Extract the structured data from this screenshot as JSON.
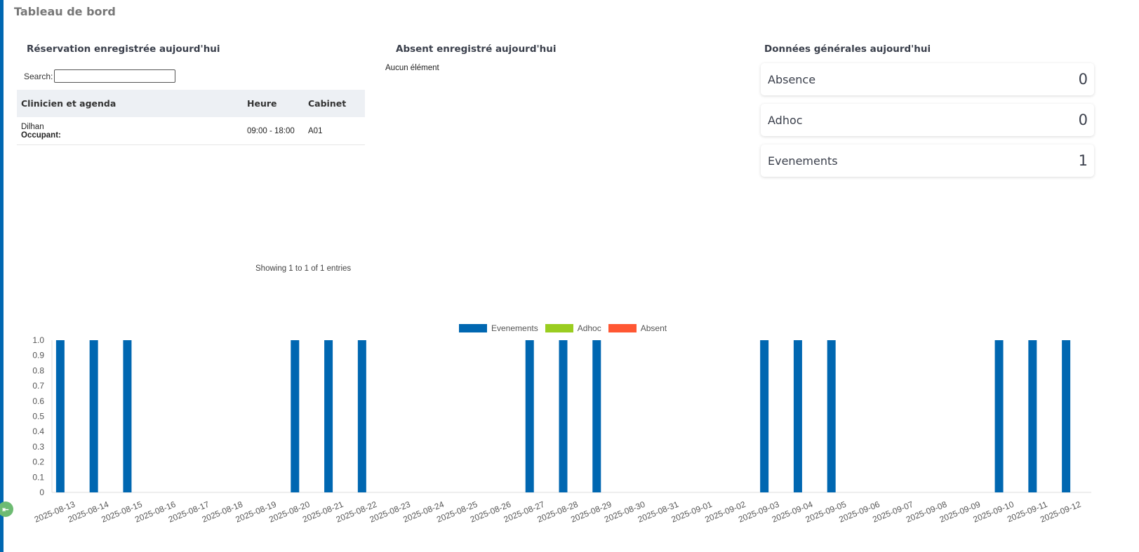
{
  "header": {
    "title": "Tableau de bord"
  },
  "reservations": {
    "title": "Réservation enregistrée aujourd'hui",
    "search_label": "Search:",
    "search_value": "",
    "columns": [
      "Clinicien et agenda",
      "Heure",
      "Cabinet"
    ],
    "rows": [
      {
        "clinician": "Dilhan",
        "occupant_label": "Occupant:",
        "time": "09:00 - 18:00",
        "room": "A01"
      }
    ],
    "info": "Showing 1 to 1 of 1 entries"
  },
  "absent": {
    "title": "Absent enregistré aujourd'hui",
    "empty": "Aucun élément"
  },
  "general": {
    "title": "Données générales aujourd'hui",
    "cards": [
      {
        "label": "Absence",
        "value": "0"
      },
      {
        "label": "Adhoc",
        "value": "0"
      },
      {
        "label": "Evenements",
        "value": "1"
      }
    ]
  },
  "chart_data": {
    "type": "bar",
    "categories": [
      "2025-08-13",
      "2025-08-14",
      "2025-08-15",
      "2025-08-16",
      "2025-08-17",
      "2025-08-18",
      "2025-08-19",
      "2025-08-20",
      "2025-08-21",
      "2025-08-22",
      "2025-08-23",
      "2025-08-24",
      "2025-08-25",
      "2025-08-26",
      "2025-08-27",
      "2025-08-28",
      "2025-08-29",
      "2025-08-30",
      "2025-08-31",
      "2025-09-01",
      "2025-09-02",
      "2025-09-03",
      "2025-09-04",
      "2025-09-05",
      "2025-09-06",
      "2025-09-07",
      "2025-09-08",
      "2025-09-09",
      "2025-09-10",
      "2025-09-11",
      "2025-09-12"
    ],
    "series": [
      {
        "name": "Evenements",
        "color": "#0067b1",
        "values": [
          1,
          1,
          1,
          0,
          0,
          0,
          0,
          1,
          1,
          1,
          0,
          0,
          0,
          0,
          1,
          1,
          1,
          0,
          0,
          0,
          0,
          1,
          1,
          1,
          0,
          0,
          0,
          0,
          1,
          1,
          1
        ]
      },
      {
        "name": "Adhoc",
        "color": "#9acd20",
        "values": [
          0,
          0,
          0,
          0,
          0,
          0,
          0,
          0,
          0,
          0,
          0,
          0,
          0,
          0,
          0,
          0,
          0,
          0,
          0,
          0,
          0,
          0,
          0,
          0,
          0,
          0,
          0,
          0,
          0,
          0,
          0
        ]
      },
      {
        "name": "Absent",
        "color": "#ff5733",
        "values": [
          0,
          0,
          0,
          0,
          0,
          0,
          0,
          0,
          0,
          0,
          0,
          0,
          0,
          0,
          0,
          0,
          0,
          0,
          0,
          0,
          0,
          0,
          0,
          0,
          0,
          0,
          0,
          0,
          0,
          0,
          0
        ]
      }
    ],
    "yticks": [
      "0",
      "0.1",
      "0.2",
      "0.3",
      "0.4",
      "0.5",
      "0.6",
      "0.7",
      "0.8",
      "0.9",
      "1.0"
    ],
    "ylim": [
      0,
      1
    ],
    "legend": "top-center",
    "title": "",
    "xlabel": "",
    "ylabel": ""
  }
}
